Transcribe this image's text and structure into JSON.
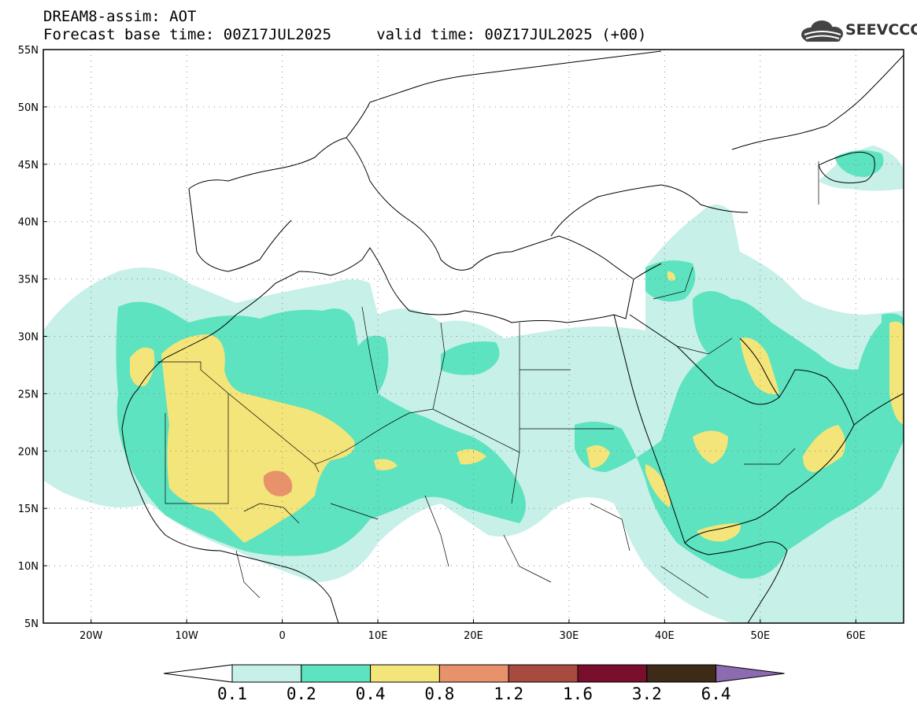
{
  "header": {
    "title_line1": "DREAM8-assim: AOT",
    "title_line2": "Forecast base time: 00Z17JUL2025     valid time: 00Z17JUL2025 (+00)",
    "logo_text": "SEEVCCC"
  },
  "map": {
    "lon_range": [
      -25,
      65
    ],
    "lat_range": [
      5,
      55
    ],
    "lat_labels": [
      "5N",
      "10N",
      "15N",
      "20N",
      "25N",
      "30N",
      "35N",
      "40N",
      "45N",
      "50N",
      "55N"
    ],
    "lon_labels": [
      "20W",
      "10W",
      "0",
      "10E",
      "20E",
      "30E",
      "40E",
      "50E",
      "60E"
    ],
    "gridlines": "dotted"
  },
  "colorbar": {
    "labels": [
      "0.1",
      "0.2",
      "0.4",
      "0.8",
      "1.2",
      "1.6",
      "3.2",
      "6.4"
    ],
    "colors": [
      "#ffffff",
      "#c6f0e8",
      "#5de3bf",
      "#f4e57a",
      "#e8926b",
      "#a84a3e",
      "#7a0f2d",
      "#3d2a17",
      "#8c6bb0"
    ]
  }
}
